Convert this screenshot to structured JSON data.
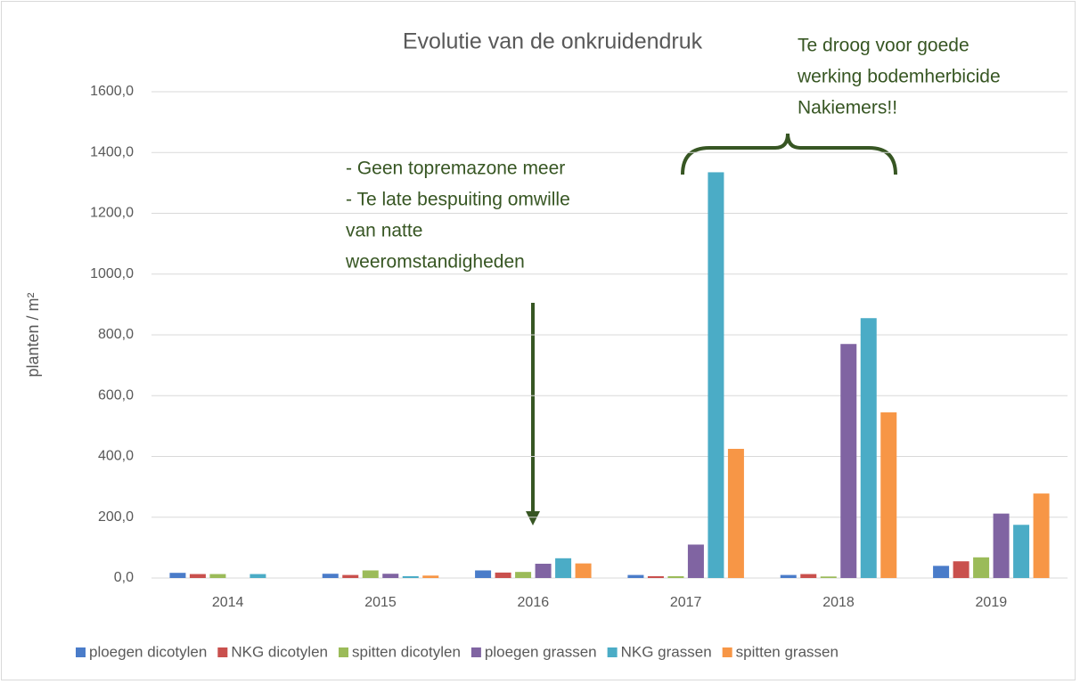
{
  "chart_data": {
    "type": "bar",
    "title": "Evolutie van de onkruidendruk",
    "y_label": "planten / m²",
    "categories": [
      "2014",
      "2015",
      "2016",
      "2017",
      "2018",
      "2019"
    ],
    "series": [
      {
        "name": "ploegen dicotylen",
        "color": "#4a7cc9",
        "values": [
          17,
          14,
          25,
          10,
          10,
          40
        ]
      },
      {
        "name": "NKG dicotylen",
        "color": "#c9504d",
        "values": [
          13,
          10,
          18,
          6,
          13,
          55
        ]
      },
      {
        "name": "spitten dicotylen",
        "color": "#9bbb59",
        "values": [
          13,
          25,
          20,
          6,
          5,
          68
        ]
      },
      {
        "name": "ploegen grassen",
        "color": "#8064a2",
        "values": [
          0,
          14,
          47,
          110,
          770,
          212
        ]
      },
      {
        "name": "NKG grassen",
        "color": "#4bacc6",
        "values": [
          13,
          6,
          65,
          1335,
          855,
          175
        ]
      },
      {
        "name": "spitten grassen",
        "color": "#f79646",
        "values": [
          0,
          8,
          48,
          425,
          545,
          278
        ]
      }
    ],
    "ylim": [
      0,
      1600
    ],
    "yticks": [
      {
        "value": 0,
        "label": "0,0"
      },
      {
        "value": 200,
        "label": "200,0"
      },
      {
        "value": 400,
        "label": "400,0"
      },
      {
        "value": 600,
        "label": "600,0"
      },
      {
        "value": 800,
        "label": "800,0"
      },
      {
        "value": 1000,
        "label": "1000,0"
      },
      {
        "value": 1200,
        "label": "1200,0"
      },
      {
        "value": 1400,
        "label": "1400,0"
      },
      {
        "value": 1600,
        "label": "1600,0"
      }
    ],
    "grid": true,
    "legend": "bottom",
    "annotations": [
      {
        "lines": [
          "- Geen topremazone meer",
          "- Te late bespuiting omwille",
          "van natte",
          "weeromstandigheden"
        ]
      },
      {
        "lines": [
          "Te droog voor goede",
          "werking bodemherbicide",
          "Nakiemers!!"
        ]
      }
    ]
  }
}
